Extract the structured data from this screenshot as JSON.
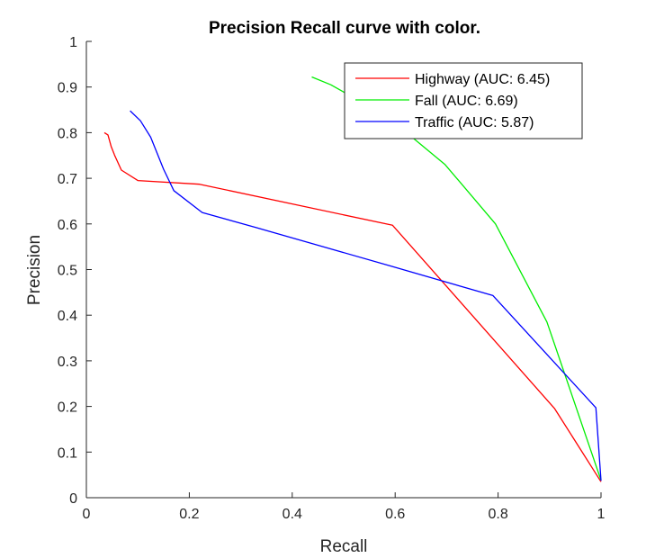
{
  "chart_data": {
    "type": "line",
    "title": "Precision Recall curve with color.",
    "xlabel": "Recall",
    "ylabel": "Precision",
    "xlim": [
      0,
      1
    ],
    "ylim": [
      0,
      1
    ],
    "xticks": [
      "0",
      "0.2",
      "0.4",
      "0.6",
      "0.8",
      "1"
    ],
    "yticks": [
      "0",
      "0.1",
      "0.2",
      "0.3",
      "0.4",
      "0.5",
      "0.6",
      "0.7",
      "0.8",
      "0.9",
      "1"
    ],
    "grid": false,
    "legend_position": "top-right",
    "series": [
      {
        "name": "Highway (AUC: 6.45)",
        "color": "#ff0000",
        "x": [
          0.035,
          0.042,
          0.048,
          0.055,
          0.068,
          0.1,
          0.22,
          0.595,
          0.91,
          1.0
        ],
        "y": [
          0.8,
          0.795,
          0.77,
          0.75,
          0.718,
          0.695,
          0.687,
          0.597,
          0.195,
          0.035
        ]
      },
      {
        "name": "Fall (AUC: 6.69)",
        "color": "#00ee00",
        "x": [
          0.438,
          0.475,
          0.585,
          0.697,
          0.795,
          0.895,
          1.0
        ],
        "y": [
          0.922,
          0.905,
          0.835,
          0.73,
          0.6,
          0.385,
          0.038
        ]
      },
      {
        "name": "Traffic (AUC: 5.87)",
        "color": "#0000ff",
        "x": [
          0.085,
          0.105,
          0.125,
          0.15,
          0.17,
          0.225,
          0.33,
          0.46,
          0.59,
          0.79,
          0.99,
          1.0
        ],
        "y": [
          0.848,
          0.826,
          0.79,
          0.72,
          0.673,
          0.625,
          0.592,
          0.55,
          0.508,
          0.443,
          0.197,
          0.037
        ]
      }
    ]
  }
}
